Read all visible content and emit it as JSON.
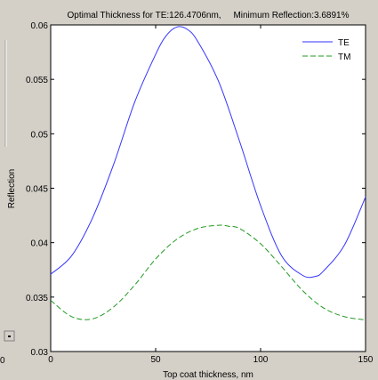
{
  "colors": {
    "figure_bg": "#d4d0c8",
    "plot_bg": "#ffffff",
    "axis": "#000000",
    "te": "#3333ff",
    "tm": "#229922"
  },
  "left_slider": {
    "button_icon": "small-square-button-icon"
  },
  "chart_data": {
    "type": "line",
    "title": "Optimal Thickness for TE:126.4706nm,     Minimum Reflection:3.6891%",
    "xlabel": "Top coat thickness, nm",
    "ylabel": "Reflection",
    "xlim": [
      0,
      150
    ],
    "ylim": [
      0.03,
      0.06
    ],
    "xticks": [
      0,
      50,
      100,
      150
    ],
    "xtick_labels": [
      "0",
      "50",
      "100",
      "150"
    ],
    "yticks": [
      0.03,
      0.035,
      0.04,
      0.045,
      0.05,
      0.055,
      0.06
    ],
    "ytick_labels": [
      "0.03",
      "0.035",
      "0.04",
      "0.045",
      "0.05",
      "0.055",
      "0.06"
    ],
    "legend_position": "top-right",
    "grid": false,
    "left_edge_label": "0",
    "series": [
      {
        "name": "TE",
        "style": "solid",
        "x": [
          0,
          10,
          20,
          30,
          40,
          50,
          55,
          60,
          65,
          70,
          80,
          90,
          100,
          110,
          120,
          126,
          130,
          140,
          150
        ],
        "y": [
          0.0371,
          0.0388,
          0.0423,
          0.0472,
          0.0529,
          0.0573,
          0.059,
          0.0598,
          0.0596,
          0.0585,
          0.0548,
          0.0493,
          0.0434,
          0.0388,
          0.037,
          0.0369,
          0.0374,
          0.0398,
          0.0442
        ]
      },
      {
        "name": "TM",
        "style": "dashed",
        "x": [
          0,
          10,
          20,
          30,
          40,
          50,
          60,
          70,
          80,
          85,
          90,
          100,
          110,
          120,
          130,
          140,
          150
        ],
        "y": [
          0.0347,
          0.0332,
          0.033,
          0.0341,
          0.0361,
          0.0385,
          0.0403,
          0.0413,
          0.0416,
          0.0415,
          0.0413,
          0.0399,
          0.0378,
          0.0356,
          0.034,
          0.0332,
          0.0329
        ]
      }
    ]
  }
}
